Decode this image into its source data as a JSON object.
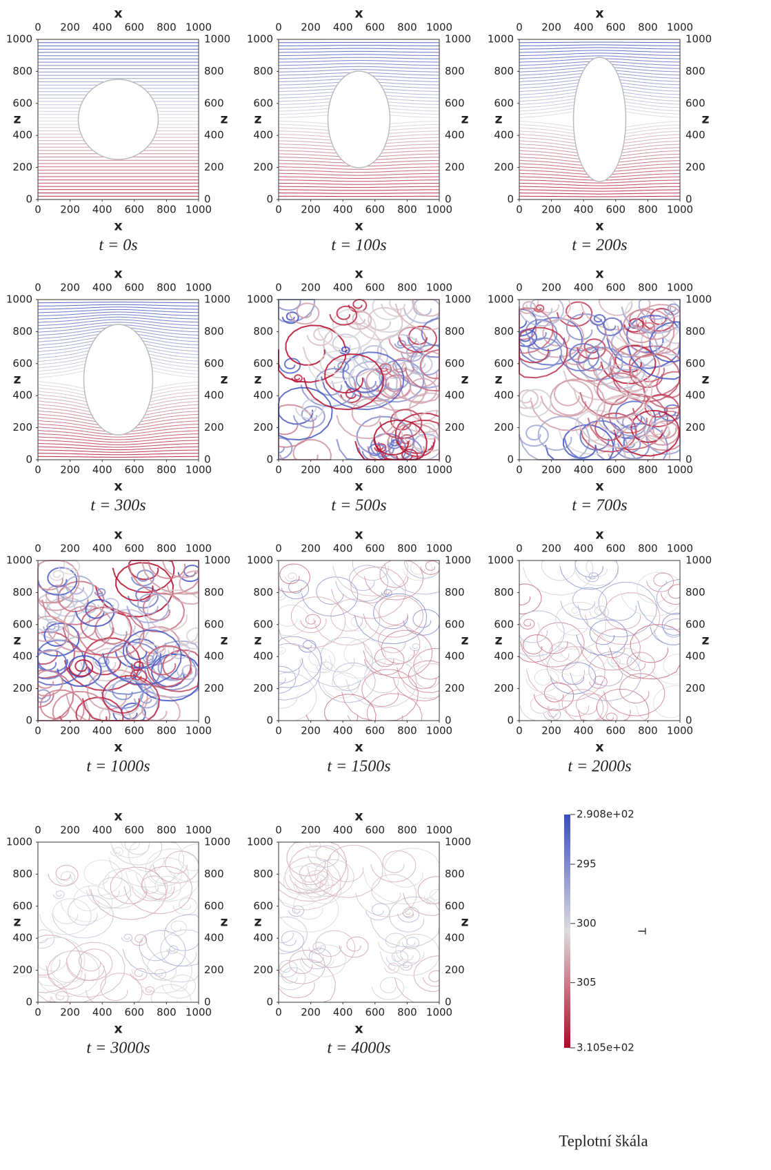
{
  "chart_data": [
    {
      "type": "contour",
      "title": "t = 0s",
      "x_label": "x",
      "y_label": "z",
      "xlim": [
        0,
        1000
      ],
      "ylim": [
        0,
        1000
      ],
      "xticks": [
        0,
        200,
        400,
        600,
        800,
        1000
      ],
      "yticks": [
        0,
        200,
        400,
        600,
        800,
        1000
      ]
    },
    {
      "type": "contour",
      "title": "t = 100s",
      "x_label": "x",
      "y_label": "z",
      "xlim": [
        0,
        1000
      ],
      "ylim": [
        0,
        1000
      ],
      "xticks": [
        0,
        200,
        400,
        600,
        800,
        1000
      ],
      "yticks": [
        0,
        200,
        400,
        600,
        800,
        1000
      ]
    },
    {
      "type": "contour",
      "title": "t = 200s",
      "x_label": "x",
      "y_label": "z",
      "xlim": [
        0,
        1000
      ],
      "ylim": [
        0,
        1000
      ],
      "xticks": [
        0,
        200,
        400,
        600,
        800,
        1000
      ],
      "yticks": [
        0,
        200,
        400,
        600,
        800,
        1000
      ]
    },
    {
      "type": "contour",
      "title": "t = 300s",
      "x_label": "x",
      "y_label": "z",
      "xlim": [
        0,
        1000
      ],
      "ylim": [
        0,
        1000
      ],
      "xticks": [
        0,
        200,
        400,
        600,
        800,
        1000
      ],
      "yticks": [
        0,
        200,
        400,
        600,
        800,
        1000
      ]
    },
    {
      "type": "contour",
      "title": "t = 500s",
      "x_label": "x",
      "y_label": "z",
      "xlim": [
        0,
        1000
      ],
      "ylim": [
        0,
        1000
      ],
      "xticks": [
        0,
        200,
        400,
        600,
        800,
        1000
      ],
      "yticks": [
        0,
        200,
        400,
        600,
        800,
        1000
      ]
    },
    {
      "type": "contour",
      "title": "t = 700s",
      "x_label": "x",
      "y_label": "z",
      "xlim": [
        0,
        1000
      ],
      "ylim": [
        0,
        1000
      ],
      "xticks": [
        0,
        200,
        400,
        600,
        800,
        1000
      ],
      "yticks": [
        0,
        200,
        400,
        600,
        800,
        1000
      ]
    },
    {
      "type": "contour",
      "title": "t = 1000s",
      "x_label": "x",
      "y_label": "z",
      "xlim": [
        0,
        1000
      ],
      "ylim": [
        0,
        1000
      ],
      "xticks": [
        0,
        200,
        400,
        600,
        800,
        1000
      ],
      "yticks": [
        0,
        200,
        400,
        600,
        800,
        1000
      ]
    },
    {
      "type": "contour",
      "title": "t = 1500s",
      "x_label": "x",
      "y_label": "z",
      "xlim": [
        0,
        1000
      ],
      "ylim": [
        0,
        1000
      ],
      "xticks": [
        0,
        200,
        400,
        600,
        800,
        1000
      ],
      "yticks": [
        0,
        200,
        400,
        600,
        800,
        1000
      ]
    },
    {
      "type": "contour",
      "title": "t = 2000s",
      "x_label": "x",
      "y_label": "z",
      "xlim": [
        0,
        1000
      ],
      "ylim": [
        0,
        1000
      ],
      "xticks": [
        0,
        200,
        400,
        600,
        800,
        1000
      ],
      "yticks": [
        0,
        200,
        400,
        600,
        800,
        1000
      ]
    },
    {
      "type": "contour",
      "title": "t = 3000s",
      "x_label": "x",
      "y_label": "z",
      "xlim": [
        0,
        1000
      ],
      "ylim": [
        0,
        1000
      ],
      "xticks": [
        0,
        200,
        400,
        600,
        800,
        1000
      ],
      "yticks": [
        0,
        200,
        400,
        600,
        800,
        1000
      ]
    },
    {
      "type": "contour",
      "title": "t = 4000s",
      "x_label": "x",
      "y_label": "z",
      "xlim": [
        0,
        1000
      ],
      "ylim": [
        0,
        1000
      ],
      "xticks": [
        0,
        200,
        400,
        600,
        800,
        1000
      ],
      "yticks": [
        0,
        200,
        400,
        600,
        800,
        1000
      ]
    },
    {
      "type": "colorbar",
      "label": "T",
      "title": "Teplotní škála",
      "lim": [
        290.8,
        310.5
      ],
      "ticks": [
        {
          "value": 290.8,
          "label": "2.908e+02"
        },
        295,
        300,
        305,
        {
          "value": 310.5,
          "label": "3.105e+02"
        }
      ],
      "colors": [
        "#3b4cc0",
        "#dddddd",
        "#b40426"
      ]
    }
  ]
}
